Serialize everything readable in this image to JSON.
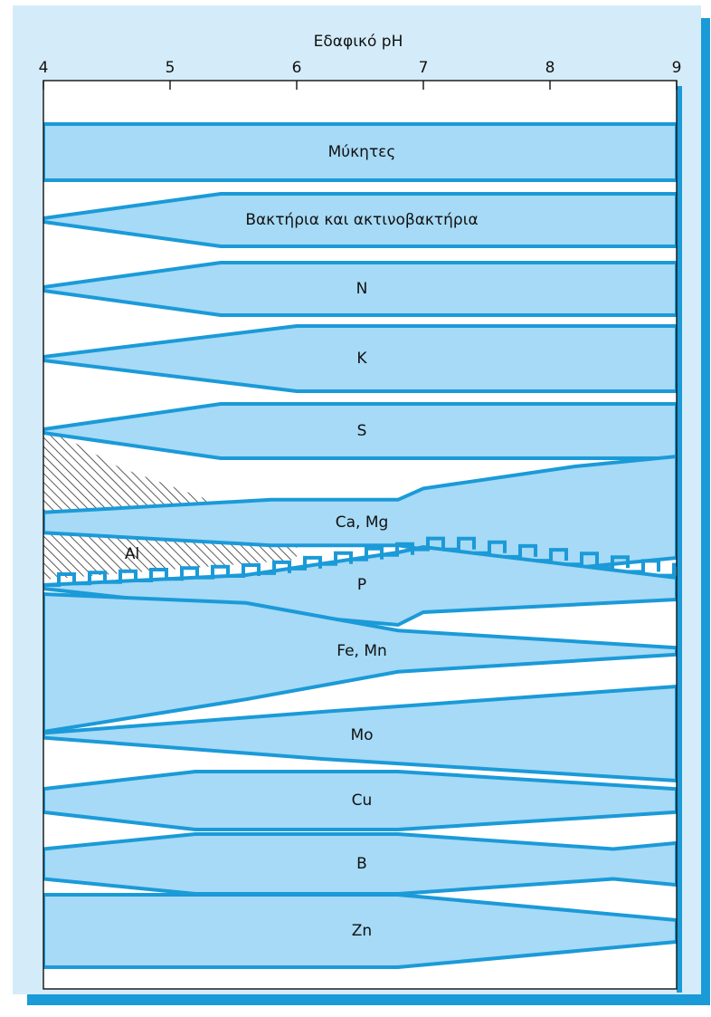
{
  "chart_data": {
    "type": "area",
    "xlabel": "Εδαφικό pH",
    "x_ticks": [
      4,
      5,
      6,
      7,
      8,
      9
    ],
    "xlim": [
      4,
      9
    ],
    "colors": {
      "band_fill": "#a6daf6",
      "band_stroke": "#1b9ad8",
      "panel_bg": "#d4ecf9",
      "frame_shadow": "#1b9ad8",
      "hatch": "#333333"
    },
    "series": [
      {
        "name": "Μύκητες",
        "pH": [
          4,
          9
        ],
        "relative_width": [
          1.0,
          1.0
        ]
      },
      {
        "name": "Βακτήρια και ακτινοβακτήρια",
        "pH": [
          4,
          5.4,
          9
        ],
        "relative_width": [
          0.05,
          1.0,
          1.0
        ]
      },
      {
        "name": "N",
        "pH": [
          4,
          5.4,
          9
        ],
        "relative_width": [
          0.05,
          1.0,
          1.0
        ]
      },
      {
        "name": "K",
        "pH": [
          4,
          6.0,
          9
        ],
        "relative_width": [
          0.05,
          1.0,
          1.0
        ]
      },
      {
        "name": "S",
        "pH": [
          4,
          5.4,
          9
        ],
        "relative_width": [
          0.05,
          1.0,
          1.0
        ]
      },
      {
        "name": "Ca, Mg",
        "pH": [
          4,
          5.8,
          6.8,
          7.0,
          8.2,
          9
        ],
        "relative_width": [
          0.2,
          0.45,
          0.45,
          0.6,
          1.0,
          1.0
        ]
      },
      {
        "name": "Al",
        "pH": [
          4,
          4.6,
          5.5,
          6.0
        ],
        "relative_width": [
          1.0,
          0.6,
          0.2,
          0.0
        ]
      },
      {
        "name": "P",
        "pH": [
          4,
          5.6,
          6.8,
          7.0,
          9
        ],
        "relative_width": [
          0.05,
          0.5,
          1.0,
          0.9,
          0.3
        ]
      },
      {
        "name": "Fe, Mn",
        "pH": [
          4,
          5.6,
          6.8,
          9
        ],
        "relative_width": [
          1.0,
          0.7,
          0.3,
          0.05
        ]
      },
      {
        "name": "Mo",
        "pH": [
          4,
          6.2,
          9
        ],
        "relative_width": [
          0.05,
          0.5,
          1.0
        ]
      },
      {
        "name": "Cu",
        "pH": [
          4,
          5.2,
          6.8,
          9
        ],
        "relative_width": [
          0.4,
          1.0,
          1.0,
          0.4
        ]
      },
      {
        "name": "B",
        "pH": [
          4,
          5.2,
          6.8,
          8.5,
          9
        ],
        "relative_width": [
          0.5,
          1.0,
          1.0,
          0.5,
          0.7
        ]
      },
      {
        "name": "Zn",
        "pH": [
          4,
          5.2,
          6.8,
          9
        ],
        "relative_width": [
          1.0,
          1.0,
          1.0,
          0.3
        ]
      }
    ]
  }
}
